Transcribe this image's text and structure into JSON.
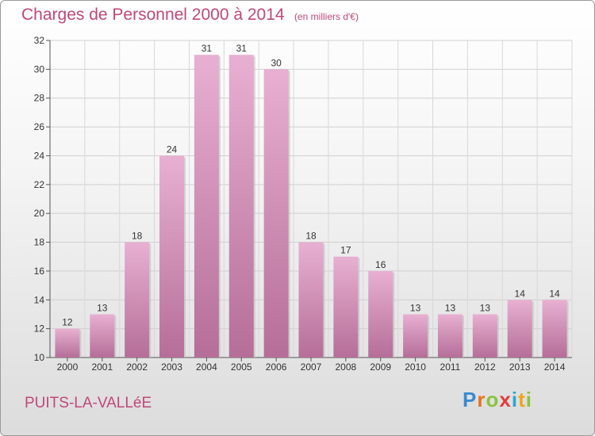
{
  "header": {
    "title": "Charges de Personnel 2000 à 2014",
    "subtitle": "(en milliers d'€)"
  },
  "footer": {
    "commune": "PUITS-LA-VALLéE",
    "logo_letters": [
      "P",
      "r",
      "o",
      "x",
      "i",
      "t",
      "i"
    ],
    "logo_colors": [
      "#3a8ad2",
      "#e8731c",
      "#8ac43e",
      "#e23b3b",
      "#2aa7d8",
      "#f2a418",
      "#8ac43e"
    ]
  },
  "colors": {
    "bar_light": "#e8b0d2",
    "bar_dark": "#b56e98",
    "text_accent": "#c0487a"
  },
  "chart_data": {
    "type": "bar",
    "title": "Charges de Personnel 2000 à 2014",
    "subtitle": "(en milliers d'€)",
    "categories": [
      "2000",
      "2001",
      "2002",
      "2003",
      "2004",
      "2005",
      "2006",
      "2007",
      "2008",
      "2009",
      "2010",
      "2011",
      "2012",
      "2013",
      "2014"
    ],
    "values": [
      12,
      13,
      18,
      24,
      31,
      31,
      30,
      18,
      17,
      16,
      13,
      13,
      13,
      14,
      14
    ],
    "ylim": [
      10,
      32
    ],
    "yticks": [
      10,
      12,
      14,
      16,
      18,
      20,
      22,
      24,
      26,
      28,
      30,
      32
    ],
    "grid": true,
    "data_labels": true
  }
}
